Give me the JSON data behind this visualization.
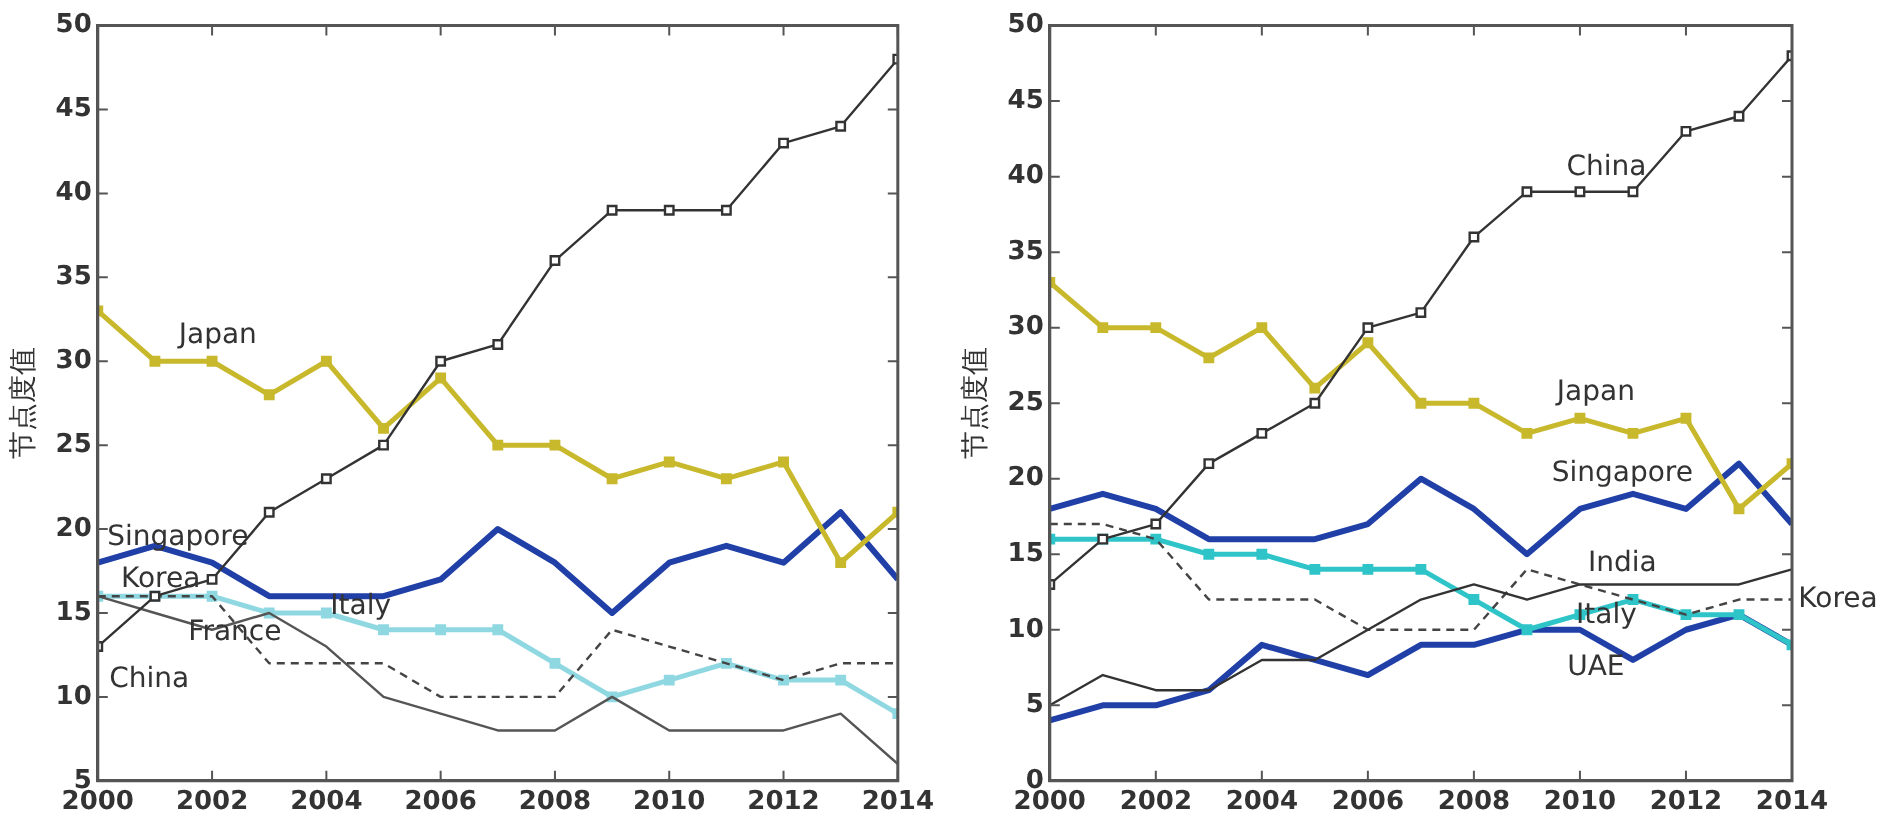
{
  "chart_data": [
    {
      "type": "line",
      "ylabel": "节点度值",
      "x": [
        2000,
        2001,
        2002,
        2003,
        2004,
        2005,
        2006,
        2007,
        2008,
        2009,
        2010,
        2011,
        2012,
        2013,
        2014
      ],
      "xlim": [
        2000,
        2014
      ],
      "xticks": [
        2000,
        2002,
        2004,
        2006,
        2008,
        2010,
        2012,
        2014
      ],
      "ylim": [
        5,
        50
      ],
      "yticks": [
        5,
        10,
        15,
        20,
        25,
        30,
        35,
        40,
        45,
        50
      ],
      "grid": false,
      "legend": false,
      "series": [
        {
          "name": "China",
          "color": "#333333",
          "marker": "square",
          "values": [
            13,
            16,
            17,
            21,
            23,
            25,
            30,
            31,
            36,
            39,
            39,
            39,
            43,
            44,
            48
          ]
        },
        {
          "name": "Japan",
          "color": "#c8b82c",
          "marker": "square",
          "values": [
            33,
            30,
            30,
            28,
            30,
            26,
            29,
            25,
            25,
            23,
            24,
            23,
            24,
            18,
            21
          ]
        },
        {
          "name": "Singapore",
          "color": "#2040a8",
          "values": [
            18,
            19,
            18,
            16,
            16,
            16,
            17,
            20,
            18,
            15,
            18,
            19,
            18,
            21,
            17
          ]
        },
        {
          "name": "Korea",
          "color": "#444444",
          "line_style": "dashed",
          "values": [
            16,
            16,
            16,
            12,
            12,
            12,
            10,
            10,
            10,
            14,
            13,
            12,
            11,
            12,
            12
          ]
        },
        {
          "name": "France",
          "color": "#555555",
          "values": [
            16,
            15,
            14,
            15,
            13,
            10,
            9,
            8,
            8,
            10,
            8,
            8,
            8,
            9,
            6
          ]
        },
        {
          "name": "Italy",
          "color": "#8fd8e2",
          "marker": "square",
          "values": [
            16,
            16,
            16,
            15,
            15,
            14,
            14,
            14,
            12,
            10,
            11,
            12,
            11,
            11,
            9
          ]
        }
      ]
    },
    {
      "type": "line",
      "ylabel": "节点度值",
      "x": [
        2000,
        2001,
        2002,
        2003,
        2004,
        2005,
        2006,
        2007,
        2008,
        2009,
        2010,
        2011,
        2012,
        2013,
        2014
      ],
      "xlim": [
        2000,
        2014
      ],
      "xticks": [
        2000,
        2002,
        2004,
        2006,
        2008,
        2010,
        2012,
        2014
      ],
      "ylim": [
        0,
        50
      ],
      "yticks": [
        0,
        5,
        10,
        15,
        20,
        25,
        30,
        35,
        40,
        45,
        50
      ],
      "grid": false,
      "legend": false,
      "series": [
        {
          "name": "China",
          "color": "#333333",
          "marker": "square",
          "values": [
            13,
            16,
            17,
            21,
            23,
            25,
            30,
            31,
            36,
            39,
            39,
            39,
            43,
            44,
            48
          ]
        },
        {
          "name": "Japan",
          "color": "#c8b82c",
          "marker": "square",
          "values": [
            33,
            30,
            30,
            28,
            30,
            26,
            29,
            25,
            25,
            23,
            24,
            23,
            24,
            18,
            21
          ]
        },
        {
          "name": "Singapore",
          "color": "#2040a8",
          "values": [
            18,
            19,
            18,
            16,
            16,
            16,
            17,
            20,
            18,
            15,
            18,
            19,
            18,
            21,
            17
          ]
        },
        {
          "name": "India",
          "color": "#333333",
          "values": [
            5,
            7,
            6,
            6,
            8,
            8,
            10,
            12,
            13,
            12,
            13,
            13,
            13,
            13,
            14
          ]
        },
        {
          "name": "Korea",
          "color": "#444444",
          "line_style": "dashed",
          "values": [
            17,
            17,
            16,
            12,
            12,
            12,
            10,
            10,
            10,
            14,
            13,
            12,
            11,
            12,
            12
          ]
        },
        {
          "name": "Italy",
          "color": "#2ec4c8",
          "marker": "square",
          "values": [
            16,
            16,
            16,
            15,
            15,
            14,
            14,
            14,
            12,
            10,
            11,
            12,
            11,
            11,
            9
          ]
        },
        {
          "name": "UAE",
          "color": "#2040a8",
          "values": [
            4,
            5,
            5,
            6,
            9,
            8,
            7,
            9,
            9,
            10,
            10,
            8,
            10,
            11,
            9
          ]
        }
      ]
    }
  ]
}
